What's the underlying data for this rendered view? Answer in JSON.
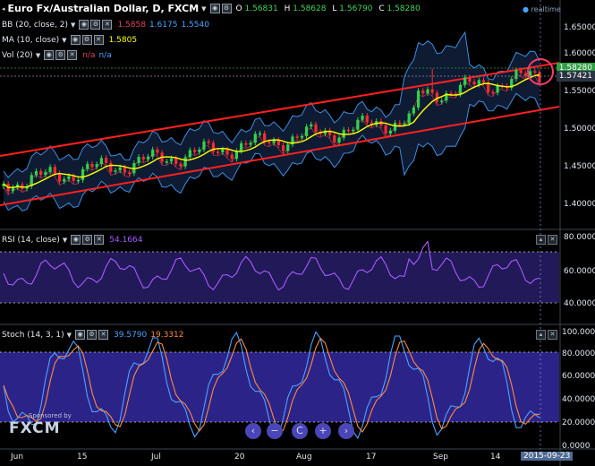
{
  "header": {
    "title": "Euro Fx/Australian Dollar, D, FXCM",
    "realtime_label": "realtime",
    "ohlc": [
      {
        "key": "O",
        "value": "1.56831"
      },
      {
        "key": "H",
        "value": "1.58628"
      },
      {
        "key": "L",
        "value": "1.56790"
      },
      {
        "key": "C",
        "value": "1.58280"
      }
    ]
  },
  "indicators": {
    "bb": {
      "name": "BB (20, close, 2)",
      "values": [
        "1.5858",
        "1.6175",
        "1.5540"
      ],
      "colors": [
        "#e0435a",
        "#4aa3ff",
        "#4aa3ff"
      ]
    },
    "ma": {
      "name": "MA (10, close)",
      "value": "1.5805",
      "color": "#ffff00"
    },
    "vol": {
      "name": "Vol (20)",
      "values": [
        "n/a",
        "n/a"
      ],
      "colors": [
        "#e0435a",
        "#4aa3ff"
      ]
    }
  },
  "price_axis": {
    "ticks": [
      "1.65000",
      "1.60000",
      "1.55000",
      "1.50000",
      "1.45000",
      "1.40000"
    ],
    "tags": [
      {
        "label": "1.58280",
        "color": "#2f9e44"
      },
      {
        "label": "1.57421",
        "color": "#2b3442"
      }
    ]
  },
  "rsi": {
    "name": "RSI (14, close)",
    "value": "54.1664",
    "color": "#a55bff",
    "ticks": [
      "80.0000",
      "60.0000",
      "40.0000"
    ]
  },
  "stoch": {
    "name": "Stoch (14, 3, 1)",
    "values": [
      "39.5790",
      "19.3312"
    ],
    "colors": [
      "#4aa3ff",
      "#ff8a3d"
    ],
    "ticks": [
      "100.0000",
      "80.0000",
      "60.0000",
      "40.0000",
      "20.0000",
      "0.0000"
    ]
  },
  "time_axis": {
    "labels": [
      "Jun",
      "15",
      "Jul",
      "20",
      "Aug",
      "17",
      "Sep",
      "14"
    ],
    "current": "2015-09-23"
  },
  "nav": {
    "buttons": [
      "‹",
      "−",
      "C",
      "+",
      "›"
    ]
  },
  "sponsor": {
    "line1": "Sponsored by",
    "line2": "FXCM"
  }
}
